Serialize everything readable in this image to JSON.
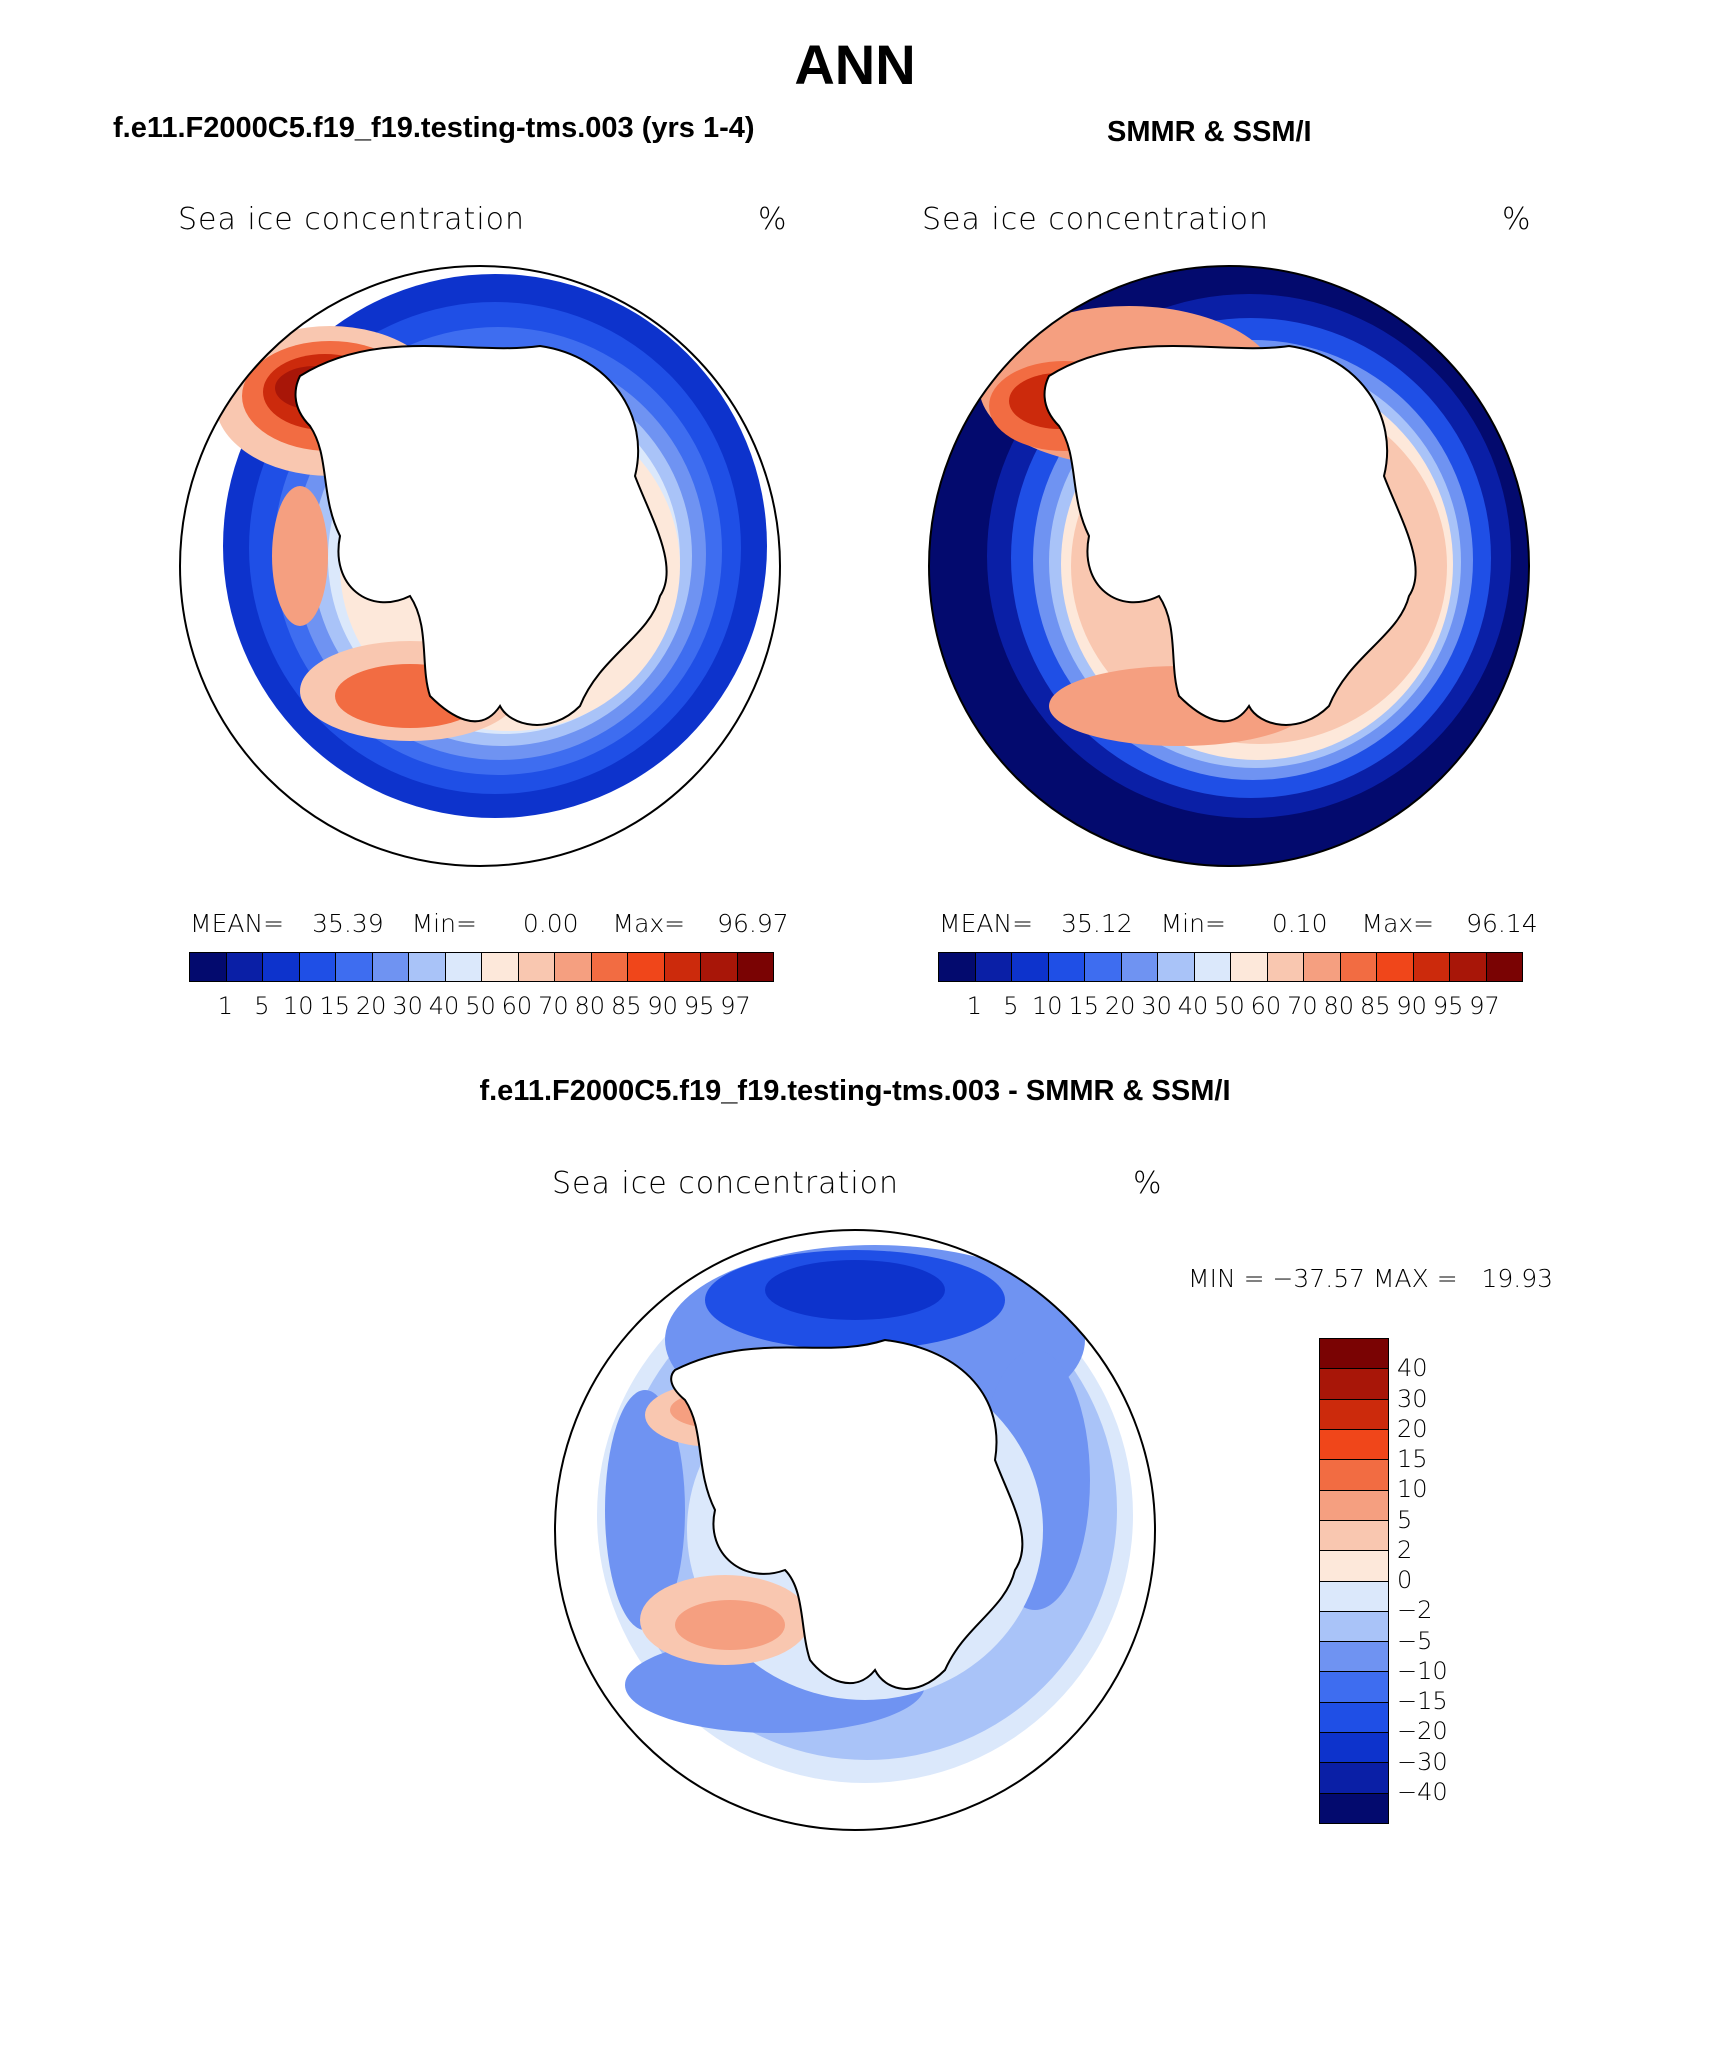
{
  "page_title": "ANN",
  "panels": {
    "model": {
      "title": "f.e11.F2000C5.f19_f19.testing-tms.003 (yrs 1-4)",
      "field": "Sea ice concentration",
      "units": "%",
      "mean_label": "MEAN=",
      "mean": "35.39",
      "min_label": "Min=",
      "min": "0.00",
      "max_label": "Max=",
      "max": "96.97"
    },
    "obs": {
      "title": "SMMR & SSM/I",
      "field": "Sea ice concentration",
      "units": "%",
      "mean_label": "MEAN=",
      "mean": "35.12",
      "min_label": "Min=",
      "min": "0.10",
      "max_label": "Max=",
      "max": "96.14"
    },
    "diff": {
      "title": "f.e11.F2000C5.f19_f19.testing-tms.003 - SMMR & SSM/I",
      "field": "Sea ice concentration",
      "units": "%",
      "minmax": "MIN = −37.57 MAX =   19.93"
    }
  },
  "colorbar_levels": [
    "1",
    "5",
    "10",
    "15",
    "20",
    "30",
    "40",
    "50",
    "60",
    "70",
    "80",
    "85",
    "90",
    "95",
    "97"
  ],
  "colorbar_colors": [
    "#030a6e",
    "#0a1fa6",
    "#0d33cc",
    "#1f4fe6",
    "#3e6df0",
    "#6f93f2",
    "#a9c3f8",
    "#dbe8fb",
    "#fde8da",
    "#f9c7b0",
    "#f59f80",
    "#f26c42",
    "#f0461a",
    "#cc2a0c",
    "#a81608",
    "#7a0303"
  ],
  "diff_levels": [
    "40",
    "30",
    "20",
    "15",
    "10",
    "5",
    "2",
    "0",
    "−2",
    "−5",
    "−10",
    "−15",
    "−20",
    "−30",
    "−40"
  ],
  "diff_colors": [
    "#7a0303",
    "#a81608",
    "#cc2a0c",
    "#f0461a",
    "#f26c42",
    "#f59f80",
    "#f9c7b0",
    "#fde8da",
    "#dbe8fb",
    "#a9c3f8",
    "#6f93f2",
    "#3e6df0",
    "#1f4fe6",
    "#0d33cc",
    "#0a1fa6",
    "#030a6e"
  ]
}
